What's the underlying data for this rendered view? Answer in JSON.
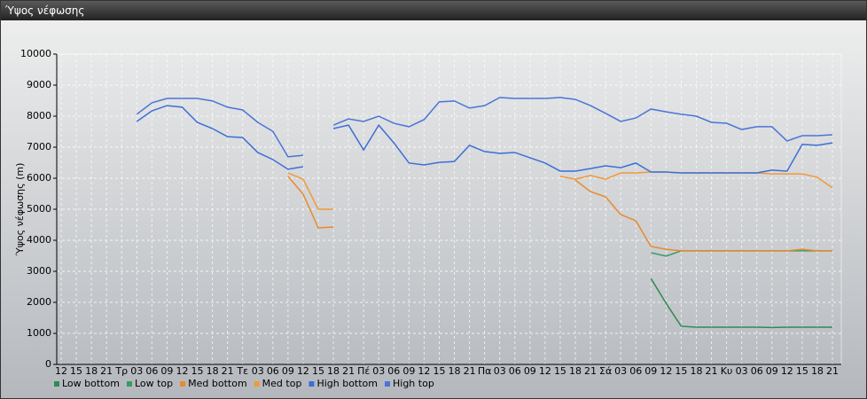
{
  "window_title": "Ύψος νέφωσης",
  "chart_data": {
    "type": "line",
    "y_label": "Ύψος νέφωσης (m)",
    "categories": [
      "12",
      "15",
      "18",
      "21",
      "Τρ",
      "03",
      "06",
      "09",
      "12",
      "15",
      "18",
      "21",
      "Τε",
      "03",
      "06",
      "09",
      "12",
      "15",
      "18",
      "21",
      "Πέ",
      "03",
      "06",
      "09",
      "12",
      "15",
      "18",
      "21",
      "Πα",
      "03",
      "06",
      "09",
      "12",
      "15",
      "18",
      "21",
      "Σά",
      "03",
      "06",
      "09",
      "12",
      "15",
      "18",
      "21",
      "Κυ",
      "03",
      "06",
      "09",
      "12",
      "15",
      "18",
      "21"
    ],
    "ylim": [
      0,
      10000
    ],
    "yticks": [
      0,
      1000,
      2000,
      3000,
      4000,
      5000,
      6000,
      7000,
      8000,
      9000,
      10000
    ],
    "grid": true,
    "series": [
      {
        "name": "Low bottom",
        "color": "#2e8b57",
        "values": [
          null,
          null,
          null,
          null,
          null,
          null,
          null,
          null,
          null,
          null,
          null,
          null,
          null,
          null,
          null,
          null,
          null,
          null,
          null,
          null,
          null,
          null,
          null,
          null,
          null,
          null,
          null,
          null,
          null,
          null,
          null,
          null,
          null,
          null,
          null,
          null,
          null,
          null,
          null,
          2770,
          1970,
          1230,
          1200,
          1200,
          1200,
          1200,
          1200,
          1190,
          1200,
          1200,
          1200,
          1200
        ]
      },
      {
        "name": "Low top",
        "color": "#3a9a66",
        "values": [
          null,
          null,
          null,
          null,
          null,
          null,
          null,
          null,
          null,
          null,
          null,
          null,
          null,
          null,
          null,
          null,
          null,
          null,
          null,
          null,
          null,
          null,
          null,
          null,
          null,
          null,
          null,
          null,
          null,
          null,
          null,
          null,
          null,
          null,
          null,
          null,
          null,
          null,
          null,
          3600,
          3490,
          3660,
          3660,
          3660,
          3660,
          3660,
          3660,
          3660,
          3660,
          3660,
          3660,
          3660
        ]
      },
      {
        "name": "Med bottom",
        "color": "#e88a2e",
        "values": [
          null,
          null,
          null,
          null,
          null,
          null,
          null,
          null,
          null,
          null,
          null,
          null,
          null,
          null,
          null,
          6060,
          5490,
          4400,
          4430,
          null,
          null,
          null,
          null,
          null,
          null,
          null,
          null,
          null,
          null,
          null,
          null,
          null,
          null,
          null,
          5940,
          5570,
          5400,
          4830,
          4630,
          3800,
          3710,
          3660,
          3660,
          3660,
          3660,
          3660,
          3660,
          3660,
          3660,
          3710,
          3660,
          3660
        ]
      },
      {
        "name": "Med top",
        "color": "#f09a3a",
        "values": [
          null,
          null,
          null,
          null,
          null,
          null,
          null,
          null,
          null,
          null,
          null,
          null,
          null,
          null,
          null,
          6170,
          5970,
          5000,
          5000,
          null,
          null,
          null,
          null,
          null,
          null,
          null,
          null,
          null,
          null,
          null,
          null,
          null,
          null,
          6060,
          5970,
          6090,
          5970,
          6170,
          6170,
          6200,
          6200,
          6170,
          6170,
          6170,
          6170,
          6170,
          6170,
          6140,
          6140,
          6140,
          6030,
          5690
        ]
      },
      {
        "name": "High bottom",
        "color": "#3b6fd6",
        "values": [
          null,
          null,
          null,
          null,
          null,
          7830,
          8170,
          8340,
          8290,
          7800,
          7600,
          7340,
          7310,
          6830,
          6600,
          6290,
          6370,
          null,
          7600,
          7710,
          6910,
          7710,
          7140,
          6490,
          6430,
          6510,
          6540,
          7060,
          6860,
          6800,
          6830,
          6660,
          6490,
          6230,
          6230,
          6310,
          6400,
          6340,
          6490,
          6200,
          6200,
          6170,
          6170,
          6170,
          6170,
          6170,
          6170,
          6260,
          6230,
          7090,
          7060,
          7140
        ]
      },
      {
        "name": "High top",
        "color": "#4a74d8",
        "values": [
          null,
          null,
          null,
          null,
          null,
          8060,
          8430,
          8570,
          8570,
          8570,
          8490,
          8290,
          8200,
          7800,
          7510,
          6690,
          6740,
          null,
          7710,
          7910,
          7830,
          8000,
          7770,
          7660,
          7890,
          8460,
          8490,
          8260,
          8340,
          8600,
          8570,
          8570,
          8570,
          8600,
          8540,
          8340,
          8090,
          7830,
          7940,
          8230,
          8140,
          8060,
          8000,
          7800,
          7770,
          7570,
          7660,
          7660,
          7200,
          7370,
          7370,
          7400
        ]
      }
    ]
  }
}
